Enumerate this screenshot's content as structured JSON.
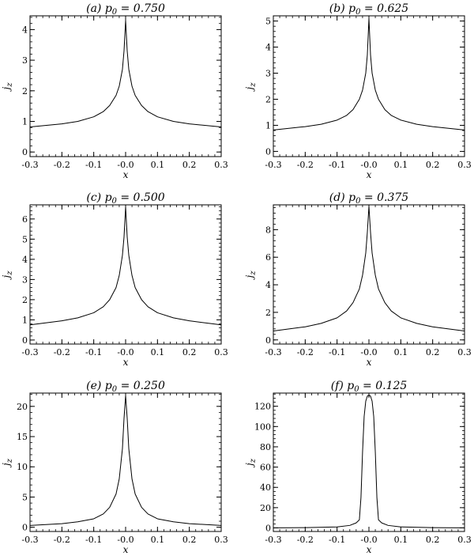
{
  "chart_data": [
    {
      "type": "line",
      "title": "(a) p0 = 0.750",
      "title_parts": {
        "prefix": "(a) p",
        "sub": "0",
        "suffix": " = 0.750"
      },
      "xlabel": "x",
      "ylabel": {
        "main": "j",
        "sub": "z"
      },
      "xlim": [
        -0.3,
        0.3
      ],
      "ylim": [
        -0.15,
        4.45
      ],
      "xticks": [
        -0.3,
        -0.2,
        -0.1,
        -0.0,
        0.1,
        0.2,
        0.3
      ],
      "xtick_labels": [
        "-0.3",
        "-0.2",
        "-0.1",
        "-0.0",
        "0.1",
        "0.2",
        "0.3"
      ],
      "yticks": [
        0,
        1,
        2,
        3,
        4
      ],
      "ytick_labels": [
        "0",
        "1",
        "2",
        "3",
        "4"
      ],
      "series": [
        {
          "x": [
            -0.3,
            -0.2,
            -0.15,
            -0.1,
            -0.07,
            -0.05,
            -0.03,
            -0.02,
            -0.01,
            -0.005,
            0,
            0.005,
            0.01,
            0.02,
            0.03,
            0.05,
            0.07,
            0.1,
            0.15,
            0.2,
            0.3
          ],
          "y": [
            0.82,
            0.92,
            1.0,
            1.15,
            1.32,
            1.52,
            1.85,
            2.15,
            2.7,
            3.3,
            4.3,
            3.3,
            2.7,
            2.15,
            1.85,
            1.52,
            1.32,
            1.15,
            1.0,
            0.92,
            0.82
          ]
        }
      ]
    },
    {
      "type": "line",
      "title": "(b) p0 = 0.625",
      "title_parts": {
        "prefix": "(b) p",
        "sub": "0",
        "suffix": " = 0.625"
      },
      "xlabel": "x",
      "ylabel": {
        "main": "j",
        "sub": "z"
      },
      "xlim": [
        -0.3,
        0.3
      ],
      "ylim": [
        -0.2,
        5.2
      ],
      "xticks": [
        -0.3,
        -0.2,
        -0.1,
        -0.0,
        0.1,
        0.2,
        0.3
      ],
      "xtick_labels": [
        "-0.3",
        "-0.2",
        "-0.1",
        "-0.0",
        "0.1",
        "0.2",
        "0.3"
      ],
      "yticks": [
        0,
        1,
        2,
        3,
        4,
        5
      ],
      "ytick_labels": [
        "0",
        "1",
        "2",
        "3",
        "4",
        "5"
      ],
      "series": [
        {
          "x": [
            -0.3,
            -0.2,
            -0.15,
            -0.1,
            -0.07,
            -0.05,
            -0.03,
            -0.02,
            -0.01,
            -0.005,
            0,
            0.005,
            0.01,
            0.02,
            0.03,
            0.05,
            0.07,
            0.1,
            0.15,
            0.2,
            0.3
          ],
          "y": [
            0.82,
            0.95,
            1.04,
            1.2,
            1.38,
            1.6,
            2.0,
            2.35,
            3.0,
            3.7,
            5.1,
            3.7,
            3.0,
            2.35,
            2.0,
            1.6,
            1.38,
            1.2,
            1.04,
            0.95,
            0.82
          ]
        }
      ]
    },
    {
      "type": "line",
      "title": "(c) p0 = 0.500",
      "title_parts": {
        "prefix": "(c) p",
        "sub": "0",
        "suffix": " = 0.500"
      },
      "xlabel": "x",
      "ylabel": {
        "main": "j",
        "sub": "z"
      },
      "xlim": [
        -0.3,
        0.3
      ],
      "ylim": [
        -0.2,
        6.7
      ],
      "xticks": [
        -0.3,
        -0.2,
        -0.1,
        -0.0,
        0.1,
        0.2,
        0.3
      ],
      "xtick_labels": [
        "-0.3",
        "-0.2",
        "-0.1",
        "-0.0",
        "0.1",
        "0.2",
        "0.3"
      ],
      "yticks": [
        0,
        1,
        2,
        3,
        4,
        5,
        6
      ],
      "ytick_labels": [
        "0",
        "1",
        "2",
        "3",
        "4",
        "5",
        "6"
      ],
      "series": [
        {
          "x": [
            -0.3,
            -0.2,
            -0.15,
            -0.1,
            -0.07,
            -0.05,
            -0.03,
            -0.02,
            -0.01,
            -0.005,
            0,
            0.005,
            0.01,
            0.02,
            0.03,
            0.05,
            0.07,
            0.1,
            0.15,
            0.2,
            0.3
          ],
          "y": [
            0.75,
            0.95,
            1.1,
            1.35,
            1.65,
            2.0,
            2.6,
            3.2,
            4.2,
            5.1,
            6.6,
            5.1,
            4.2,
            3.2,
            2.6,
            2.0,
            1.65,
            1.35,
            1.1,
            0.95,
            0.75
          ]
        }
      ]
    },
    {
      "type": "line",
      "title": "(d) p0 = 0.375",
      "title_parts": {
        "prefix": "(d) p",
        "sub": "0",
        "suffix": " = 0.375"
      },
      "xlabel": "x",
      "ylabel": {
        "main": "j",
        "sub": "z"
      },
      "xlim": [
        -0.3,
        0.3
      ],
      "ylim": [
        -0.3,
        9.8
      ],
      "xticks": [
        -0.3,
        -0.2,
        -0.1,
        -0.0,
        0.1,
        0.2,
        0.3
      ],
      "xtick_labels": [
        "-0.3",
        "-0.2",
        "-0.1",
        "-0.0",
        "0.1",
        "0.2",
        "0.3"
      ],
      "yticks": [
        0,
        2,
        4,
        6,
        8
      ],
      "ytick_labels": [
        "0",
        "2",
        "4",
        "6",
        "8"
      ],
      "series": [
        {
          "x": [
            -0.3,
            -0.2,
            -0.15,
            -0.1,
            -0.07,
            -0.05,
            -0.03,
            -0.02,
            -0.01,
            -0.005,
            0,
            0.005,
            0.01,
            0.02,
            0.03,
            0.05,
            0.07,
            0.1,
            0.15,
            0.2,
            0.3
          ],
          "y": [
            0.65,
            0.95,
            1.2,
            1.6,
            2.1,
            2.7,
            3.7,
            4.7,
            6.3,
            7.8,
            9.7,
            7.8,
            6.3,
            4.7,
            3.7,
            2.7,
            2.1,
            1.6,
            1.2,
            0.95,
            0.65
          ]
        }
      ]
    },
    {
      "type": "line",
      "title": "(e) p0 = 0.250",
      "title_parts": {
        "prefix": "(e) p",
        "sub": "0",
        "suffix": " = 0.250"
      },
      "xlabel": "x",
      "ylabel": {
        "main": "j",
        "sub": "z"
      },
      "xlim": [
        -0.3,
        0.3
      ],
      "ylim": [
        -0.7,
        22.2
      ],
      "xticks": [
        -0.3,
        -0.2,
        -0.1,
        -0.0,
        0.1,
        0.2,
        0.3
      ],
      "xtick_labels": [
        "-0.3",
        "-0.2",
        "-0.1",
        "-0.0",
        "0.1",
        "0.2",
        "0.3"
      ],
      "yticks": [
        0,
        5,
        10,
        15,
        20
      ],
      "ytick_labels": [
        "0",
        "5",
        "10",
        "15",
        "20"
      ],
      "series": [
        {
          "x": [
            -0.3,
            -0.2,
            -0.15,
            -0.1,
            -0.07,
            -0.05,
            -0.03,
            -0.02,
            -0.01,
            -0.005,
            0,
            0.005,
            0.01,
            0.02,
            0.03,
            0.05,
            0.07,
            0.1,
            0.15,
            0.2,
            0.3
          ],
          "y": [
            0.3,
            0.6,
            0.9,
            1.4,
            2.2,
            3.3,
            5.5,
            8.0,
            13.0,
            18.0,
            21.8,
            18.0,
            13.0,
            8.0,
            5.5,
            3.3,
            2.2,
            1.4,
            0.9,
            0.6,
            0.3
          ]
        }
      ]
    },
    {
      "type": "line",
      "title": "(f) p0 = 0.125",
      "title_parts": {
        "prefix": "(f) p",
        "sub": "0",
        "suffix": " = 0.125"
      },
      "xlabel": "x",
      "ylabel": {
        "main": "j",
        "sub": "z"
      },
      "xlim": [
        -0.3,
        0.3
      ],
      "ylim": [
        -3.5,
        133.0
      ],
      "xticks": [
        -0.3,
        -0.2,
        -0.1,
        -0.0,
        0.1,
        0.2,
        0.3
      ],
      "xtick_labels": [
        "-0.3",
        "-0.2",
        "-0.1",
        "-0.0",
        "0.1",
        "0.2",
        "0.3"
      ],
      "yticks": [
        0,
        20,
        40,
        60,
        80,
        100,
        120
      ],
      "ytick_labels": [
        "0",
        "20",
        "40",
        "60",
        "80",
        "100",
        "120"
      ],
      "series": [
        {
          "x": [
            -0.3,
            -0.2,
            -0.1,
            -0.06,
            -0.04,
            -0.03,
            -0.025,
            -0.02,
            -0.015,
            -0.01,
            -0.005,
            0,
            0.005,
            0.01,
            0.015,
            0.02,
            0.025,
            0.03,
            0.04,
            0.06,
            0.1,
            0.2,
            0.3
          ],
          "y": [
            0.1,
            0.3,
            1.0,
            2.5,
            5.0,
            8.0,
            30.0,
            75.0,
            110.0,
            125.0,
            130.0,
            131.0,
            130.0,
            125.0,
            110.0,
            75.0,
            30.0,
            8.0,
            5.0,
            2.5,
            1.0,
            0.3,
            0.1
          ]
        }
      ]
    }
  ]
}
